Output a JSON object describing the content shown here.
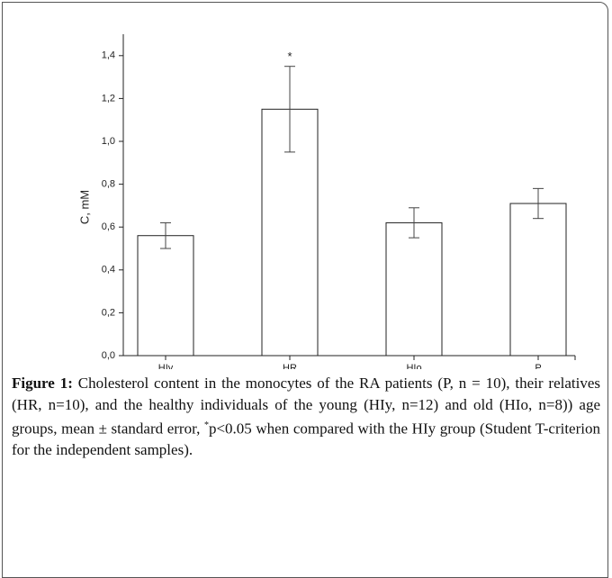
{
  "chart_data": {
    "type": "bar",
    "y_label": "C, mM",
    "categories": [
      "HIy",
      "HR",
      "HIo",
      "P"
    ],
    "values": [
      0.56,
      1.15,
      0.62,
      0.71
    ],
    "errors": [
      0.06,
      0.2,
      0.07,
      0.07
    ],
    "color": "#ffffff",
    "ylim": [
      0,
      1.5
    ],
    "yticks": [
      {
        "value": 0,
        "label": "0,0"
      },
      {
        "value": 0.2,
        "label": "0,2"
      },
      {
        "value": 0.4,
        "label": "0,4"
      },
      {
        "value": 0.6,
        "label": "0,6"
      },
      {
        "value": 0.8,
        "label": "0,8"
      },
      {
        "value": 1.0,
        "label": "1,0"
      },
      {
        "value": 1.2,
        "label": "1,2"
      },
      {
        "value": 1.4,
        "label": "1,4"
      }
    ],
    "annotations": [
      {
        "text": "*",
        "category": "HR"
      }
    ]
  },
  "caption": {
    "label": "Figure 1:",
    "text_1": " Cholesterol content in the monocytes of the RA patients (P, n = 10), their relatives (HR, n=10), and the healthy individuals of the young (HIy, n=12) and old (HIo, n=8)) age groups, mean ± standard error, ",
    "sup": "*",
    "text_2": "p<0.05 when compared with the HIy group (Student T-criterion for the independent samples)."
  }
}
